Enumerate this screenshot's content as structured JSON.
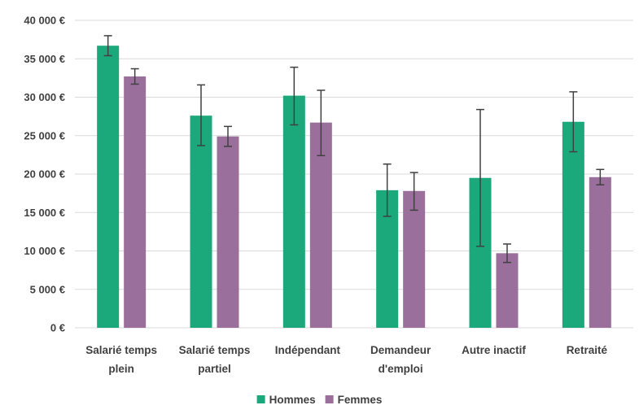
{
  "chart_data": {
    "type": "bar",
    "title": "",
    "xlabel": "",
    "ylabel": "",
    "ylim": [
      0,
      40000
    ],
    "y_ticks": [
      0,
      5000,
      10000,
      15000,
      20000,
      25000,
      30000,
      35000,
      40000
    ],
    "y_tick_labels": [
      "0 €",
      "5 000 €",
      "10 000 €",
      "15 000 €",
      "20 000 €",
      "25 000 €",
      "30 000 €",
      "35 000 €",
      "40 000 €"
    ],
    "grid": true,
    "legend_position": "bottom",
    "categories": [
      [
        "Salarié temps",
        "plein"
      ],
      [
        "Salarié temps",
        "partiel"
      ],
      [
        "Indépendant"
      ],
      [
        "Demandeur",
        "d'emploi"
      ],
      [
        "Autre inactif"
      ],
      [
        "Retraité"
      ]
    ],
    "series": [
      {
        "name": "Hommes",
        "color": "#1ba97b",
        "values": [
          36700,
          27600,
          30200,
          17900,
          19500,
          26800
        ],
        "error_low": [
          35400,
          23700,
          26400,
          14500,
          10600,
          22900
        ],
        "error_high": [
          38000,
          31600,
          33900,
          21300,
          28400,
          30700
        ]
      },
      {
        "name": "Femmes",
        "color": "#9b6f9c",
        "values": [
          32700,
          24900,
          26700,
          17800,
          9700,
          19600
        ],
        "error_low": [
          31700,
          23600,
          22400,
          15300,
          8500,
          18600
        ],
        "error_high": [
          33700,
          26200,
          30900,
          20200,
          10900,
          20600
        ]
      }
    ]
  }
}
